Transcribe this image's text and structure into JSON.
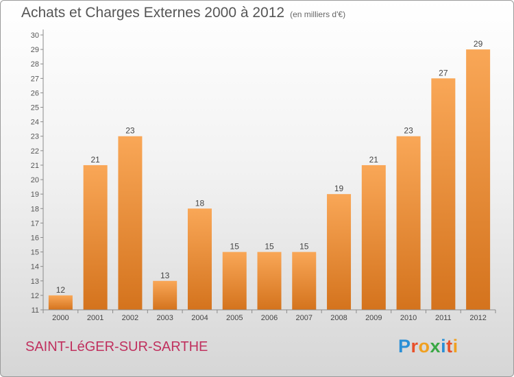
{
  "header": {
    "title": "Achats et Charges Externes 2000 à 2012",
    "subtitle": "(en milliers d'€)"
  },
  "footer": {
    "city": "SAINT-LéGER-SUR-SARTHE",
    "brand": "Proxiti"
  },
  "colors": {
    "bar_light": "#f9a757",
    "bar_dark": "#d4731d",
    "city": "#c0305e"
  },
  "chart_data": {
    "type": "bar",
    "title": "Achats et Charges Externes 2000 à 2012",
    "subtitle": "(en milliers d'€)",
    "categories": [
      "2000",
      "2001",
      "2002",
      "2003",
      "2004",
      "2005",
      "2006",
      "2007",
      "2008",
      "2009",
      "2010",
      "2011",
      "2012"
    ],
    "values": [
      12,
      21,
      23,
      13,
      18,
      15,
      15,
      15,
      19,
      21,
      23,
      27,
      29
    ],
    "xlabel": "",
    "ylabel": "",
    "ylim": [
      11,
      30
    ],
    "yticks": [
      11,
      12,
      13,
      14,
      15,
      16,
      17,
      18,
      19,
      20,
      21,
      22,
      23,
      24,
      25,
      26,
      27,
      28,
      29,
      30
    ],
    "grid": false,
    "data_labels": true
  }
}
